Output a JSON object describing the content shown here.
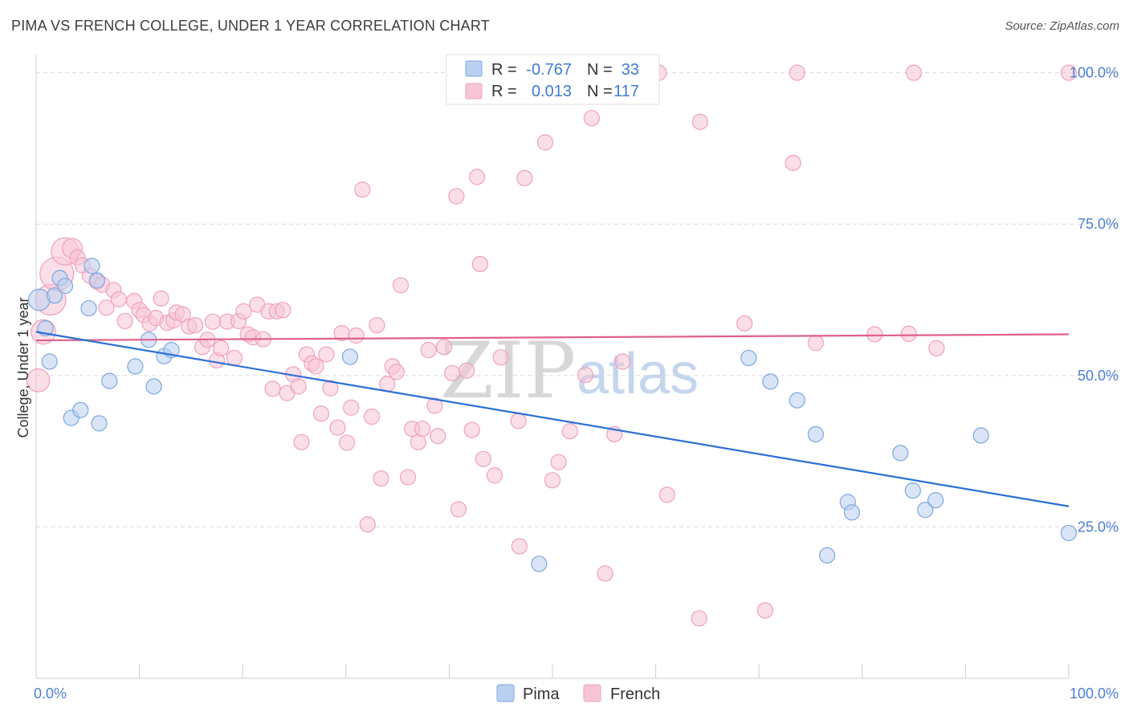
{
  "title": "PIMA VS FRENCH COLLEGE, UNDER 1 YEAR CORRELATION CHART",
  "source": "Source: ZipAtlas.com",
  "watermark": {
    "zip": "ZIP",
    "atlas": "atlas"
  },
  "legend_box": {
    "rows": [
      {
        "r_label": "R =",
        "r_value": "-0.767",
        "n_label": "N =",
        "n_value": "33"
      },
      {
        "r_label": "R =",
        "r_value": "0.013",
        "n_label": "N =",
        "n_value": "117"
      }
    ]
  },
  "chart_data": {
    "type": "scatter",
    "title": "PIMA VS FRENCH COLLEGE, UNDER 1 YEAR CORRELATION CHART",
    "xlabel": "",
    "ylabel": "College, Under 1 year",
    "xlim": [
      0,
      100
    ],
    "ylim": [
      0,
      103
    ],
    "x_tick_labels": [
      "0.0%",
      "100.0%"
    ],
    "y_ticks": [
      25,
      50,
      75,
      100
    ],
    "y_tick_labels": [
      "25.0%",
      "50.0%",
      "75.0%",
      "100.0%"
    ],
    "grid": true,
    "series": [
      {
        "name": "Pima",
        "color": "#7ba7e0",
        "fill": "#b9d0f0",
        "r": -0.767,
        "n": 33,
        "trend": {
          "x": [
            0,
            100
          ],
          "y": [
            57.2,
            28.4
          ],
          "color": "#2b6fd6"
        },
        "points": [
          {
            "x": 0.3,
            "y": 62.5,
            "s": 1.4
          },
          {
            "x": 0.9,
            "y": 57.8,
            "s": 1
          },
          {
            "x": 1.3,
            "y": 52.3,
            "s": 1
          },
          {
            "x": 1.8,
            "y": 63.2,
            "s": 1
          },
          {
            "x": 2.3,
            "y": 66.1,
            "s": 1
          },
          {
            "x": 2.8,
            "y": 64.8,
            "s": 1
          },
          {
            "x": 3.4,
            "y": 43.0,
            "s": 1
          },
          {
            "x": 4.3,
            "y": 44.3,
            "s": 1
          },
          {
            "x": 5.1,
            "y": 61.1,
            "s": 1
          },
          {
            "x": 5.4,
            "y": 68.1,
            "s": 1
          },
          {
            "x": 5.9,
            "y": 65.7,
            "s": 1
          },
          {
            "x": 6.1,
            "y": 42.1,
            "s": 1
          },
          {
            "x": 7.1,
            "y": 49.1,
            "s": 1
          },
          {
            "x": 9.6,
            "y": 51.5,
            "s": 1
          },
          {
            "x": 10.9,
            "y": 55.9,
            "s": 1
          },
          {
            "x": 11.4,
            "y": 48.2,
            "s": 1
          },
          {
            "x": 12.4,
            "y": 53.2,
            "s": 1
          },
          {
            "x": 13.1,
            "y": 54.2,
            "s": 1
          },
          {
            "x": 30.4,
            "y": 53.1,
            "s": 1
          },
          {
            "x": 48.7,
            "y": 18.9,
            "s": 1
          },
          {
            "x": 69.0,
            "y": 52.9,
            "s": 1
          },
          {
            "x": 71.1,
            "y": 49.0,
            "s": 1
          },
          {
            "x": 73.7,
            "y": 45.9,
            "s": 1
          },
          {
            "x": 75.5,
            "y": 40.3,
            "s": 1
          },
          {
            "x": 76.6,
            "y": 20.3,
            "s": 1
          },
          {
            "x": 78.6,
            "y": 29.1,
            "s": 1
          },
          {
            "x": 79.0,
            "y": 27.4,
            "s": 1
          },
          {
            "x": 83.7,
            "y": 37.2,
            "s": 1
          },
          {
            "x": 84.9,
            "y": 31.0,
            "s": 1
          },
          {
            "x": 86.1,
            "y": 27.8,
            "s": 1
          },
          {
            "x": 87.1,
            "y": 29.4,
            "s": 1
          },
          {
            "x": 91.5,
            "y": 40.1,
            "s": 1
          },
          {
            "x": 100.0,
            "y": 24.0,
            "s": 1
          }
        ]
      },
      {
        "name": "French",
        "color": "#f0a0bb",
        "fill": "#f7c5d6",
        "r": 0.013,
        "n": 117,
        "trend": {
          "x": [
            0,
            100
          ],
          "y": [
            55.8,
            56.8
          ],
          "color": "#e0608a"
        },
        "points": [
          {
            "x": 0.2,
            "y": 49.2,
            "s": 1.5
          },
          {
            "x": 0.7,
            "y": 57.2,
            "s": 1.6
          },
          {
            "x": 1.4,
            "y": 62.5,
            "s": 2.0
          },
          {
            "x": 2.0,
            "y": 66.8,
            "s": 2.2
          },
          {
            "x": 2.8,
            "y": 70.5,
            "s": 1.8
          },
          {
            "x": 3.5,
            "y": 71.0,
            "s": 1.3
          },
          {
            "x": 4.0,
            "y": 69.5,
            "s": 1
          },
          {
            "x": 4.5,
            "y": 68.2,
            "s": 1
          },
          {
            "x": 5.2,
            "y": 66.5,
            "s": 1
          },
          {
            "x": 5.9,
            "y": 65.5,
            "s": 1
          },
          {
            "x": 6.4,
            "y": 65.0,
            "s": 1
          },
          {
            "x": 6.8,
            "y": 61.2,
            "s": 1
          },
          {
            "x": 7.5,
            "y": 64.1,
            "s": 1
          },
          {
            "x": 8.0,
            "y": 62.6,
            "s": 1
          },
          {
            "x": 8.6,
            "y": 59.0,
            "s": 1
          },
          {
            "x": 9.5,
            "y": 62.3,
            "s": 1
          },
          {
            "x": 10.0,
            "y": 60.8,
            "s": 1
          },
          {
            "x": 10.4,
            "y": 60.0,
            "s": 1
          },
          {
            "x": 11.0,
            "y": 58.6,
            "s": 1
          },
          {
            "x": 11.6,
            "y": 59.5,
            "s": 1
          },
          {
            "x": 12.1,
            "y": 62.7,
            "s": 1
          },
          {
            "x": 12.7,
            "y": 58.7,
            "s": 1
          },
          {
            "x": 13.3,
            "y": 59.1,
            "s": 1
          },
          {
            "x": 13.6,
            "y": 60.4,
            "s": 1
          },
          {
            "x": 14.2,
            "y": 60.1,
            "s": 1
          },
          {
            "x": 14.8,
            "y": 58.1,
            "s": 1
          },
          {
            "x": 15.4,
            "y": 58.3,
            "s": 1
          },
          {
            "x": 16.1,
            "y": 54.7,
            "s": 1
          },
          {
            "x": 16.6,
            "y": 55.9,
            "s": 1
          },
          {
            "x": 17.1,
            "y": 58.9,
            "s": 1
          },
          {
            "x": 17.5,
            "y": 52.5,
            "s": 1
          },
          {
            "x": 17.9,
            "y": 54.5,
            "s": 1
          },
          {
            "x": 18.5,
            "y": 58.9,
            "s": 1
          },
          {
            "x": 19.2,
            "y": 52.9,
            "s": 1
          },
          {
            "x": 19.6,
            "y": 59.0,
            "s": 1
          },
          {
            "x": 20.1,
            "y": 60.6,
            "s": 1
          },
          {
            "x": 20.5,
            "y": 56.8,
            "s": 1
          },
          {
            "x": 21.0,
            "y": 56.3,
            "s": 1
          },
          {
            "x": 21.4,
            "y": 61.7,
            "s": 1
          },
          {
            "x": 22.0,
            "y": 56.0,
            "s": 1
          },
          {
            "x": 22.5,
            "y": 60.6,
            "s": 1
          },
          {
            "x": 22.9,
            "y": 47.8,
            "s": 1
          },
          {
            "x": 23.3,
            "y": 60.6,
            "s": 1
          },
          {
            "x": 23.9,
            "y": 60.8,
            "s": 1
          },
          {
            "x": 24.3,
            "y": 47.1,
            "s": 1
          },
          {
            "x": 24.9,
            "y": 50.2,
            "s": 1
          },
          {
            "x": 25.4,
            "y": 48.2,
            "s": 1
          },
          {
            "x": 25.7,
            "y": 39.0,
            "s": 1
          },
          {
            "x": 26.2,
            "y": 53.5,
            "s": 1
          },
          {
            "x": 26.7,
            "y": 52.0,
            "s": 1
          },
          {
            "x": 27.1,
            "y": 51.5,
            "s": 1
          },
          {
            "x": 27.6,
            "y": 43.7,
            "s": 1
          },
          {
            "x": 28.1,
            "y": 53.5,
            "s": 1
          },
          {
            "x": 28.5,
            "y": 47.9,
            "s": 1
          },
          {
            "x": 29.2,
            "y": 41.4,
            "s": 1
          },
          {
            "x": 29.6,
            "y": 57.0,
            "s": 1
          },
          {
            "x": 30.1,
            "y": 38.9,
            "s": 1
          },
          {
            "x": 30.5,
            "y": 44.7,
            "s": 1
          },
          {
            "x": 31.0,
            "y": 56.6,
            "s": 1
          },
          {
            "x": 31.6,
            "y": 80.7,
            "s": 1
          },
          {
            "x": 32.1,
            "y": 25.4,
            "s": 1
          },
          {
            "x": 32.5,
            "y": 43.2,
            "s": 1
          },
          {
            "x": 33.0,
            "y": 58.3,
            "s": 1
          },
          {
            "x": 33.4,
            "y": 33.0,
            "s": 1
          },
          {
            "x": 34.0,
            "y": 48.6,
            "s": 1
          },
          {
            "x": 34.5,
            "y": 51.5,
            "s": 1
          },
          {
            "x": 34.9,
            "y": 50.6,
            "s": 1
          },
          {
            "x": 35.3,
            "y": 64.9,
            "s": 1
          },
          {
            "x": 36.0,
            "y": 33.2,
            "s": 1
          },
          {
            "x": 36.4,
            "y": 41.2,
            "s": 1
          },
          {
            "x": 37.0,
            "y": 39.0,
            "s": 1
          },
          {
            "x": 37.4,
            "y": 41.2,
            "s": 1
          },
          {
            "x": 38.0,
            "y": 54.2,
            "s": 1
          },
          {
            "x": 38.6,
            "y": 45.0,
            "s": 1
          },
          {
            "x": 38.9,
            "y": 40.0,
            "s": 1
          },
          {
            "x": 39.5,
            "y": 54.7,
            "s": 1
          },
          {
            "x": 40.3,
            "y": 50.4,
            "s": 1
          },
          {
            "x": 40.7,
            "y": 79.6,
            "s": 1
          },
          {
            "x": 40.9,
            "y": 27.9,
            "s": 1
          },
          {
            "x": 41.7,
            "y": 50.8,
            "s": 1
          },
          {
            "x": 42.2,
            "y": 41.0,
            "s": 1
          },
          {
            "x": 42.7,
            "y": 82.8,
            "s": 1
          },
          {
            "x": 43.0,
            "y": 68.4,
            "s": 1
          },
          {
            "x": 43.3,
            "y": 36.2,
            "s": 1
          },
          {
            "x": 44.4,
            "y": 33.5,
            "s": 1
          },
          {
            "x": 45.0,
            "y": 53.0,
            "s": 1
          },
          {
            "x": 46.7,
            "y": 42.5,
            "s": 1
          },
          {
            "x": 46.8,
            "y": 21.8,
            "s": 1
          },
          {
            "x": 47.3,
            "y": 82.6,
            "s": 1
          },
          {
            "x": 49.3,
            "y": 88.5,
            "s": 1
          },
          {
            "x": 50.0,
            "y": 32.7,
            "s": 1
          },
          {
            "x": 50.6,
            "y": 35.7,
            "s": 1
          },
          {
            "x": 51.7,
            "y": 40.8,
            "s": 1
          },
          {
            "x": 53.2,
            "y": 50.1,
            "s": 1
          },
          {
            "x": 53.8,
            "y": 92.5,
            "s": 1
          },
          {
            "x": 55.1,
            "y": 17.3,
            "s": 1
          },
          {
            "x": 56.0,
            "y": 40.3,
            "s": 1
          },
          {
            "x": 56.8,
            "y": 52.3,
            "s": 1
          },
          {
            "x": 60.3,
            "y": 100.0,
            "s": 1
          },
          {
            "x": 61.1,
            "y": 30.3,
            "s": 1
          },
          {
            "x": 64.2,
            "y": 9.9,
            "s": 1
          },
          {
            "x": 64.3,
            "y": 91.9,
            "s": 1
          },
          {
            "x": 68.6,
            "y": 58.6,
            "s": 1
          },
          {
            "x": 70.6,
            "y": 11.2,
            "s": 1
          },
          {
            "x": 73.3,
            "y": 85.1,
            "s": 1
          },
          {
            "x": 73.7,
            "y": 100.0,
            "s": 1
          },
          {
            "x": 75.5,
            "y": 55.4,
            "s": 1
          },
          {
            "x": 81.2,
            "y": 56.8,
            "s": 1
          },
          {
            "x": 84.5,
            "y": 56.9,
            "s": 1
          },
          {
            "x": 85.0,
            "y": 100.0,
            "s": 1
          },
          {
            "x": 87.2,
            "y": 54.5,
            "s": 1
          },
          {
            "x": 100.0,
            "y": 100.0,
            "s": 1
          }
        ]
      }
    ]
  },
  "bottom_legend": [
    {
      "label": "Pima",
      "color": "#7ba7e0",
      "fill": "#b9d0f0"
    },
    {
      "label": "French",
      "color": "#f0a0bb",
      "fill": "#f7c5d6"
    }
  ],
  "colors": {
    "pima_line": "#2b6fd6",
    "french_line": "#e0608a",
    "tick_text": "#4a7fd4",
    "grid": "#d9d9d9"
  }
}
